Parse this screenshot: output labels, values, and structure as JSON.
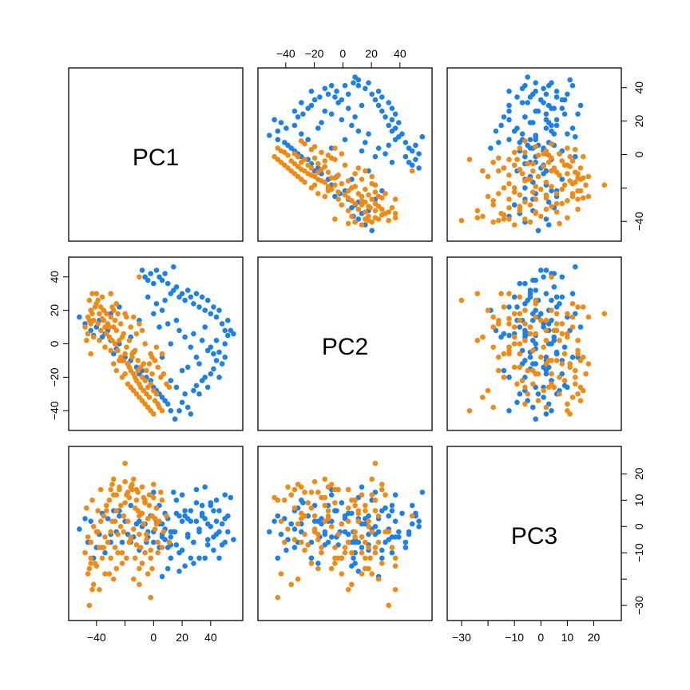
{
  "chart_data": {
    "type": "scatter",
    "variables": [
      "PC1",
      "PC2",
      "PC3"
    ],
    "series_colors": [
      "#1a80f0",
      "#f28a12"
    ],
    "axes": {
      "PC1": {
        "range": [
          -55,
          58
        ],
        "ticks": [
          -40,
          -20,
          0,
          20,
          40
        ],
        "tick_labels": [
          "−40",
          "",
          "0",
          "20",
          "40"
        ],
        "top_tick_labels": [
          "−40",
          "−20",
          "0",
          "20",
          "40"
        ]
      },
      "PC2": {
        "range": [
          -48,
          48
        ],
        "ticks": [
          -40,
          -20,
          0,
          20,
          40
        ],
        "tick_labels": [
          "−40",
          "−20",
          "0",
          "20",
          "40"
        ],
        "right_tick_labels": [
          "−40",
          "",
          "0",
          "20",
          "40"
        ]
      },
      "PC3": {
        "range": [
          -33,
          28
        ],
        "ticks": [
          -30,
          -20,
          -10,
          0,
          10,
          20
        ],
        "tick_labels": [
          "−30",
          "",
          "−10",
          "0",
          "10",
          "20"
        ],
        "right_tick_labels": [
          "−30",
          "",
          "−10",
          "0",
          "10",
          "20"
        ]
      }
    },
    "series": [
      {
        "color": "#1a80f0",
        "points": [
          [
            -52,
            16,
            -1
          ],
          [
            -48,
            12,
            3
          ],
          [
            -46,
            6,
            -6
          ],
          [
            -44,
            8,
            2
          ],
          [
            -42,
            5,
            -12
          ],
          [
            -40,
            10,
            -8
          ],
          [
            -38,
            14,
            -3
          ],
          [
            -36,
            4,
            5
          ],
          [
            -34,
            6,
            -10
          ],
          [
            -32,
            8,
            3
          ],
          [
            -30,
            2,
            -6
          ],
          [
            -28,
            -6,
            6
          ],
          [
            -26,
            -3,
            -2
          ],
          [
            -24,
            0,
            4
          ],
          [
            -22,
            -10,
            -6
          ],
          [
            -20,
            -8,
            2
          ],
          [
            -18,
            -12,
            -3
          ],
          [
            -16,
            -10,
            8
          ],
          [
            -14,
            -5,
            -4
          ],
          [
            -12,
            -14,
            1
          ],
          [
            -10,
            -18,
            2
          ],
          [
            -8,
            -16,
            -14
          ],
          [
            -5,
            -20,
            -6
          ],
          [
            -2,
            -22,
            4
          ],
          [
            0,
            -26,
            -2
          ],
          [
            2,
            -28,
            7
          ],
          [
            4,
            -30,
            -8
          ],
          [
            6,
            -32,
            1
          ],
          [
            8,
            -34,
            -5
          ],
          [
            10,
            -36,
            3
          ],
          [
            12,
            -40,
            -12
          ],
          [
            15,
            -45,
            -2
          ],
          [
            18,
            -40,
            4
          ],
          [
            20,
            -35,
            -9
          ],
          [
            22,
            -30,
            6
          ],
          [
            24,
            -38,
            -3
          ],
          [
            26,
            -42,
            2
          ],
          [
            28,
            -28,
            -6
          ],
          [
            30,
            -25,
            9
          ],
          [
            32,
            -30,
            -1
          ],
          [
            34,
            -22,
            4
          ],
          [
            36,
            -20,
            -12
          ],
          [
            38,
            -26,
            1
          ],
          [
            40,
            -18,
            8
          ],
          [
            42,
            -15,
            -4
          ],
          [
            44,
            -10,
            2
          ],
          [
            46,
            -5,
            6
          ],
          [
            48,
            -12,
            -7
          ],
          [
            50,
            0,
            3
          ],
          [
            52,
            5,
            -2
          ],
          [
            54,
            8,
            11
          ],
          [
            56,
            6,
            -5
          ],
          [
            -6,
            40,
            1
          ],
          [
            -4,
            38,
            -2
          ],
          [
            -2,
            42,
            4
          ],
          [
            0,
            36,
            -6
          ],
          [
            2,
            44,
            2
          ],
          [
            4,
            40,
            8
          ],
          [
            6,
            38,
            -3
          ],
          [
            8,
            42,
            5
          ],
          [
            10,
            36,
            -8
          ],
          [
            12,
            30,
            -4
          ],
          [
            14,
            32,
            -2
          ],
          [
            -8,
            44,
            0
          ],
          [
            16,
            34,
            5
          ],
          [
            18,
            28,
            -10
          ],
          [
            20,
            30,
            12
          ],
          [
            22,
            26,
            4
          ],
          [
            24,
            32,
            -4
          ],
          [
            26,
            28,
            6
          ],
          [
            28,
            24,
            -6
          ],
          [
            30,
            30,
            2
          ],
          [
            32,
            22,
            -12
          ],
          [
            34,
            28,
            8
          ],
          [
            36,
            20,
            3
          ],
          [
            38,
            26,
            -5
          ],
          [
            40,
            18,
            0
          ],
          [
            42,
            22,
            -9
          ],
          [
            44,
            16,
            10
          ],
          [
            46,
            20,
            -2
          ],
          [
            48,
            12,
            1
          ],
          [
            50,
            8,
            -6
          ],
          [
            52,
            14,
            4
          ],
          [
            14,
            46,
            13
          ],
          [
            22,
            4,
            -15
          ],
          [
            26,
            -2,
            -12
          ],
          [
            18,
            8,
            -17
          ],
          [
            10,
            12,
            -16
          ],
          [
            6,
            20,
            -19
          ],
          [
            0,
            18,
            13
          ],
          [
            -4,
            28,
            -4
          ],
          [
            2,
            24,
            7
          ],
          [
            8,
            26,
            -1
          ],
          [
            -10,
            14,
            -9
          ],
          [
            36,
            10,
            15
          ],
          [
            30,
            -8,
            14
          ],
          [
            40,
            -2,
            9
          ],
          [
            44,
            2,
            -3
          ],
          [
            34,
            2,
            5
          ],
          [
            28,
            6,
            -14
          ],
          [
            32,
            -12,
            -2
          ],
          [
            42,
            -6,
            6
          ],
          [
            20,
            -16,
            2
          ],
          [
            12,
            -22,
            -7
          ],
          [
            16,
            -26,
            10
          ],
          [
            46,
            -20,
            -12
          ],
          [
            38,
            -4,
            -7
          ],
          [
            50,
            -8,
            12
          ],
          [
            24,
            -14,
            3
          ],
          [
            6,
            -8,
            -4
          ],
          [
            -24,
            22,
            6
          ],
          [
            -30,
            18,
            -3
          ],
          [
            16,
            14,
            -7
          ],
          [
            -16,
            4,
            -6
          ],
          [
            4,
            10,
            1
          ],
          [
            12,
            0,
            -2
          ]
        ]
      },
      {
        "color": "#f28a12",
        "points": [
          [
            -48,
            10,
            -10
          ],
          [
            -46,
            16,
            -18
          ],
          [
            -44,
            20,
            -6
          ],
          [
            -42,
            14,
            0
          ],
          [
            -41,
            22,
            -14
          ],
          [
            -40,
            24,
            -2
          ],
          [
            -39,
            12,
            6
          ],
          [
            -38,
            18,
            -8
          ],
          [
            -37,
            8,
            2
          ],
          [
            -36,
            15,
            -12
          ],
          [
            -35,
            20,
            4
          ],
          [
            -34,
            10,
            -4
          ],
          [
            -33,
            6,
            8
          ],
          [
            -32,
            12,
            -6
          ],
          [
            -31,
            4,
            10
          ],
          [
            -30,
            16,
            -2
          ],
          [
            -29,
            2,
            2
          ],
          [
            -28,
            10,
            12
          ],
          [
            -27,
            0,
            -8
          ],
          [
            -26,
            8,
            6
          ],
          [
            -25,
            -4,
            -3
          ],
          [
            -24,
            2,
            14
          ],
          [
            -23,
            -8,
            0
          ],
          [
            -22,
            4,
            -10
          ],
          [
            -21,
            -10,
            4
          ],
          [
            -20,
            -6,
            9
          ],
          [
            -19,
            -2,
            -12
          ],
          [
            -18,
            -12,
            2
          ],
          [
            -17,
            -14,
            11
          ],
          [
            -16,
            -16,
            -5
          ],
          [
            -15,
            -8,
            16
          ],
          [
            -14,
            -18,
            -1
          ],
          [
            -13,
            -20,
            7
          ],
          [
            -12,
            -22,
            -7
          ],
          [
            -11,
            -16,
            13
          ],
          [
            -10,
            -24,
            -3
          ],
          [
            -9,
            -26,
            5
          ],
          [
            -8,
            -20,
            -14
          ],
          [
            -7,
            -28,
            1
          ],
          [
            -6,
            -22,
            9
          ],
          [
            -5,
            -30,
            -5
          ],
          [
            -4,
            -26,
            3
          ],
          [
            -3,
            -32,
            12
          ],
          [
            -2,
            -24,
            -9
          ],
          [
            -1,
            -18,
            4
          ],
          [
            0,
            -28,
            16
          ],
          [
            1,
            -34,
            -1
          ],
          [
            2,
            -30,
            7
          ],
          [
            3,
            -36,
            -6
          ],
          [
            4,
            -38,
            2
          ],
          [
            6,
            -40,
            10
          ],
          [
            -43,
            30,
            -24
          ],
          [
            -45,
            26,
            -30
          ],
          [
            -42,
            4,
            -22
          ],
          [
            -38,
            2,
            -24
          ],
          [
            -34,
            -2,
            -18
          ],
          [
            -30,
            -4,
            14
          ],
          [
            -28,
            -12,
            18
          ],
          [
            -26,
            -16,
            -16
          ],
          [
            -24,
            -10,
            15
          ],
          [
            -22,
            -20,
            -14
          ],
          [
            -20,
            -18,
            17
          ],
          [
            -18,
            -24,
            13
          ],
          [
            -16,
            -26,
            15
          ],
          [
            -14,
            -28,
            -20
          ],
          [
            -12,
            -30,
            14
          ],
          [
            -10,
            -32,
            -22
          ],
          [
            -8,
            -34,
            15
          ],
          [
            -6,
            -36,
            10
          ],
          [
            -4,
            -38,
            -18
          ],
          [
            -2,
            -40,
            -27
          ],
          [
            0,
            -42,
            11
          ],
          [
            -36,
            28,
            -8
          ],
          [
            -40,
            30,
            -15
          ],
          [
            -44,
            12,
            -12
          ],
          [
            -46,
            6,
            -4
          ],
          [
            -47,
            2,
            7
          ],
          [
            -45,
            14,
            -16
          ],
          [
            -43,
            18,
            10
          ],
          [
            -39,
            26,
            -2
          ],
          [
            -37,
            22,
            14
          ],
          [
            -35,
            14,
            -8
          ],
          [
            -33,
            18,
            6
          ],
          [
            -31,
            10,
            -18
          ],
          [
            -29,
            22,
            16
          ],
          [
            -27,
            14,
            2
          ],
          [
            -25,
            18,
            -10
          ],
          [
            -23,
            12,
            8
          ],
          [
            -21,
            6,
            -2
          ],
          [
            -19,
            16,
            12
          ],
          [
            -17,
            2,
            -6
          ],
          [
            -15,
            -6,
            14
          ],
          [
            -13,
            -4,
            -12
          ],
          [
            -11,
            -10,
            6
          ],
          [
            -9,
            -14,
            -8
          ],
          [
            -7,
            -12,
            11
          ],
          [
            -5,
            -16,
            -3
          ],
          [
            -3,
            -12,
            8
          ],
          [
            -1,
            -8,
            -16
          ],
          [
            1,
            -10,
            3
          ],
          [
            3,
            -14,
            -10
          ],
          [
            5,
            -20,
            13
          ],
          [
            7,
            -18,
            -2
          ],
          [
            9,
            -24,
            4
          ],
          [
            11,
            -26,
            -6
          ],
          [
            -20,
            18,
            24
          ],
          [
            -14,
            16,
            18
          ],
          [
            -10,
            12,
            -16
          ],
          [
            -6,
            0,
            -10
          ],
          [
            -2,
            -6,
            -12
          ],
          [
            2,
            -2,
            1
          ],
          [
            6,
            -6,
            -8
          ],
          [
            -12,
            6,
            10
          ],
          [
            -16,
            10,
            -4
          ],
          [
            -8,
            8,
            5
          ],
          [
            -30,
            30,
            -12
          ],
          [
            -26,
            24,
            12
          ],
          [
            -28,
            20,
            -20
          ],
          [
            -10,
            40,
            4
          ],
          [
            -44,
            -6,
            -14
          ]
        ]
      }
    ]
  }
}
